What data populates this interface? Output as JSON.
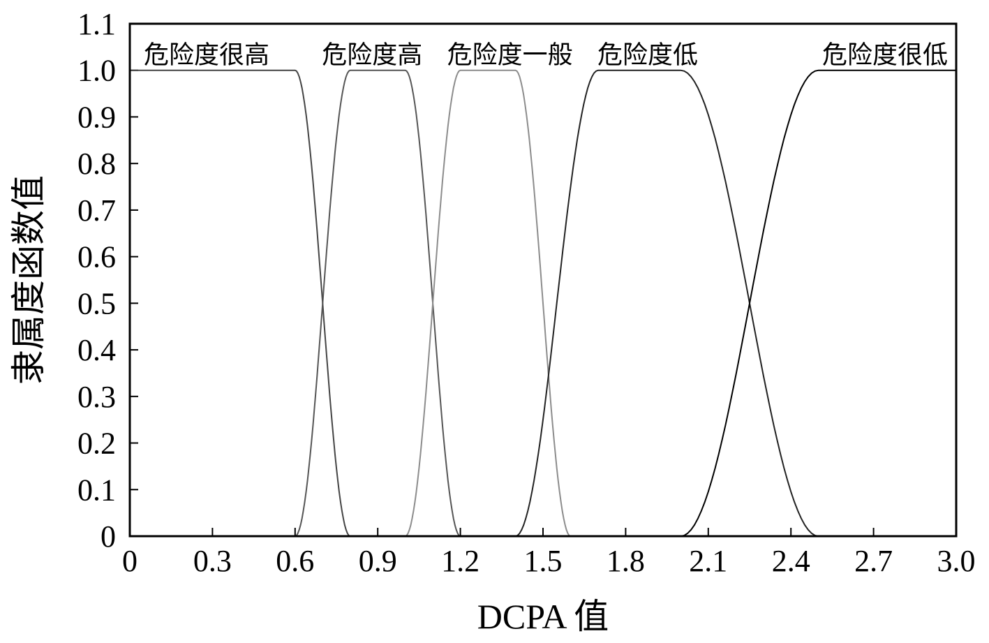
{
  "chart_data": {
    "type": "line",
    "title": "",
    "xlabel": "DCPA 值",
    "ylabel": "隶属度函数值",
    "xlim": [
      0,
      3.0
    ],
    "ylim": [
      0,
      1.1
    ],
    "x_ticks": [
      "0",
      "0.3",
      "0.6",
      "0.9",
      "1.2",
      "1.5",
      "1.8",
      "2.1",
      "2.4",
      "2.7",
      "3.0"
    ],
    "y_ticks": [
      "0",
      "0.1",
      "0.2",
      "0.3",
      "0.4",
      "0.5",
      "0.6",
      "0.7",
      "0.8",
      "0.9",
      "1.0",
      "1.1"
    ],
    "grid": false,
    "series": [
      {
        "name": "危险度很高",
        "color": "#444444",
        "points": [
          [
            0,
            1
          ],
          [
            0.6,
            1
          ],
          [
            0.8,
            0
          ]
        ]
      },
      {
        "name": "危险度高",
        "color": "#555555",
        "points": [
          [
            0.6,
            0
          ],
          [
            0.8,
            1
          ],
          [
            1.0,
            1
          ],
          [
            1.2,
            0
          ]
        ]
      },
      {
        "name": "危险度一般",
        "color": "#8c8c8c",
        "points": [
          [
            1.0,
            0
          ],
          [
            1.2,
            1
          ],
          [
            1.4,
            1
          ],
          [
            1.6,
            0
          ]
        ]
      },
      {
        "name": "危险度低",
        "color": "#222222",
        "points": [
          [
            1.4,
            0
          ],
          [
            1.7,
            1
          ],
          [
            2.0,
            1
          ],
          [
            2.5,
            0
          ]
        ]
      },
      {
        "name": "危险度很低",
        "color": "#000000",
        "points": [
          [
            2.0,
            0
          ],
          [
            2.5,
            1
          ],
          [
            3.0,
            1
          ]
        ]
      }
    ]
  }
}
